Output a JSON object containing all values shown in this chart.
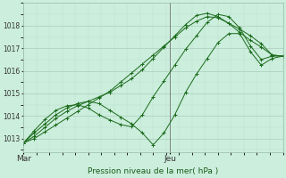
{
  "title": "Pression niveau de la mer( hPa )",
  "bg_color": "#cceedd",
  "grid_color_major": "#aaccbb",
  "grid_color_minor": "#bbddcc",
  "line_color": "#1a6b1a",
  "ylim": [
    1012.4,
    1019.0
  ],
  "yticks": [
    1013,
    1014,
    1015,
    1016,
    1017,
    1018
  ],
  "xtick_labels": [
    "Mar",
    "Jeu"
  ],
  "vline_x": 0.565,
  "n_points": 25,
  "series": [
    [
      1012.8,
      1013.0,
      1013.3,
      1013.6,
      1013.9,
      1014.2,
      1014.5,
      1014.8,
      1015.1,
      1015.5,
      1015.9,
      1016.3,
      1016.7,
      1017.1,
      1017.5,
      1017.9,
      1018.2,
      1018.4,
      1018.35,
      1018.1,
      1017.85,
      1017.55,
      1017.2,
      1016.7,
      1016.65
    ],
    [
      1012.8,
      1013.1,
      1013.5,
      1013.9,
      1014.2,
      1014.45,
      1014.65,
      1014.85,
      1015.05,
      1015.35,
      1015.65,
      1016.05,
      1016.55,
      1017.05,
      1017.55,
      1018.05,
      1018.45,
      1018.55,
      1018.4,
      1018.1,
      1017.7,
      1017.35,
      1017.05,
      1016.7,
      1016.65
    ],
    [
      1012.8,
      1013.35,
      1013.85,
      1014.25,
      1014.45,
      1014.5,
      1014.35,
      1014.05,
      1013.82,
      1013.62,
      1013.52,
      1014.05,
      1014.85,
      1015.55,
      1016.25,
      1016.95,
      1017.55,
      1018.15,
      1018.5,
      1018.4,
      1017.9,
      1017.1,
      1016.5,
      1016.65,
      1016.65
    ],
    [
      1012.8,
      1013.25,
      1013.65,
      1014.05,
      1014.35,
      1014.55,
      1014.65,
      1014.55,
      1014.25,
      1013.95,
      1013.65,
      1013.25,
      1012.72,
      1013.25,
      1014.05,
      1015.05,
      1015.85,
      1016.55,
      1017.25,
      1017.65,
      1017.65,
      1016.85,
      1016.25,
      1016.55,
      1016.65
    ]
  ]
}
